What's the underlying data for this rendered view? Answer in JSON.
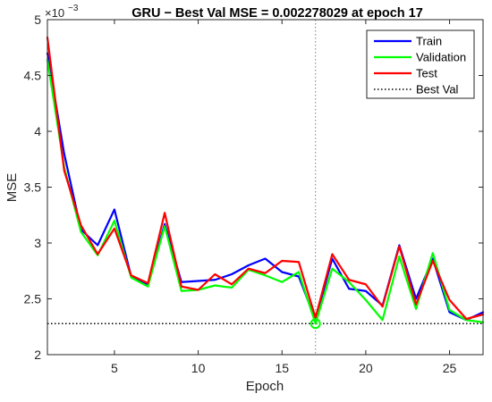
{
  "chart_data": {
    "type": "line",
    "title": "GRU − Best Val MSE = 0.002278029 at epoch 17",
    "xlabel": "Epoch",
    "ylabel": "MSE",
    "y_exponent_label": "×10",
    "y_exponent_power": "−3",
    "xlim": [
      1,
      27
    ],
    "ylim": [
      2,
      5
    ],
    "x_ticks": [
      5,
      10,
      15,
      20,
      25
    ],
    "x_tick_labels": [
      "5",
      "10",
      "15",
      "20",
      "25"
    ],
    "y_ticks": [
      2,
      2.5,
      3,
      3.5,
      4,
      4.5,
      5
    ],
    "y_tick_labels": [
      "2",
      "2.5",
      "3",
      "3.5",
      "4",
      "4.5",
      "5"
    ],
    "grid": false,
    "legend_placement": "top-right",
    "x": [
      1,
      2,
      3,
      4,
      5,
      6,
      7,
      8,
      9,
      10,
      11,
      12,
      13,
      14,
      15,
      16,
      17,
      18,
      19,
      20,
      21,
      22,
      23,
      24,
      25,
      26,
      27
    ],
    "series": [
      {
        "name": "Train",
        "color": "#0000ff",
        "values": [
          4.7,
          3.8,
          3.12,
          2.98,
          3.3,
          2.7,
          2.63,
          3.17,
          2.65,
          2.66,
          2.67,
          2.72,
          2.8,
          2.86,
          2.74,
          2.7,
          2.31,
          2.86,
          2.59,
          2.57,
          2.44,
          2.98,
          2.5,
          2.86,
          2.38,
          2.31,
          2.38
        ]
      },
      {
        "name": "Validation",
        "color": "#00ff00",
        "values": [
          4.64,
          3.68,
          3.1,
          2.89,
          3.2,
          2.69,
          2.61,
          3.15,
          2.57,
          2.58,
          2.62,
          2.6,
          2.76,
          2.71,
          2.65,
          2.74,
          2.278029,
          2.77,
          2.65,
          2.49,
          2.31,
          2.88,
          2.41,
          2.91,
          2.4,
          2.31,
          2.29
        ]
      },
      {
        "name": "Test",
        "color": "#ff0000",
        "values": [
          4.84,
          3.65,
          3.16,
          2.9,
          3.13,
          2.71,
          2.64,
          3.27,
          2.61,
          2.58,
          2.72,
          2.63,
          2.77,
          2.73,
          2.84,
          2.83,
          2.33,
          2.9,
          2.67,
          2.63,
          2.43,
          2.97,
          2.45,
          2.84,
          2.49,
          2.32,
          2.36
        ]
      }
    ],
    "reference_lines": [
      {
        "name": "Best Val",
        "orientation": "horizontal",
        "value": 2.278029,
        "style": "dotted",
        "color": "#000000"
      },
      {
        "orientation": "vertical",
        "value": 17,
        "style": "dotted",
        "color": "#808080"
      }
    ],
    "best_marker": {
      "x": 17,
      "y": 2.278029,
      "color": "#00ff00",
      "shape": "circle"
    }
  }
}
